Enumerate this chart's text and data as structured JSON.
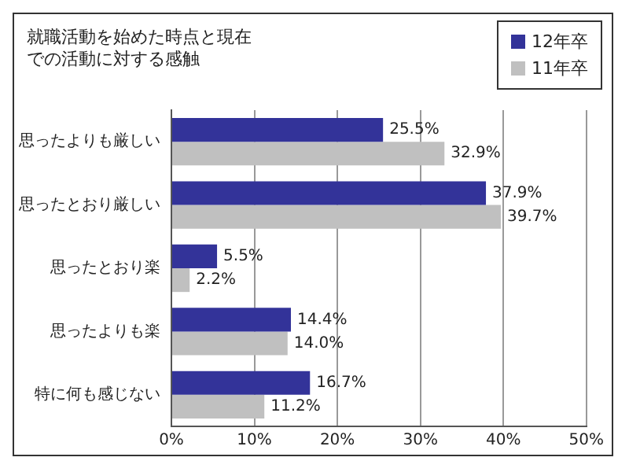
{
  "chart_data": {
    "type": "bar",
    "orientation": "horizontal",
    "title": "就職活動を始めた時点と現在での活動に対する感触",
    "categories": [
      "思ったよりも厳しい",
      "思ったとおり厳しい",
      "思ったとおり楽",
      "思ったよりも楽",
      "特に何も感じない"
    ],
    "series": [
      {
        "name": "12年卒",
        "color": "#333399",
        "values": [
          25.5,
          37.9,
          5.5,
          14.4,
          16.7
        ],
        "value_labels": [
          "25.5%",
          "37.9%",
          "5.5%",
          "14.4%",
          "16.7%"
        ]
      },
      {
        "name": "11年卒",
        "color": "#c0c0c0",
        "values": [
          32.9,
          39.7,
          2.2,
          14.0,
          11.2
        ],
        "value_labels": [
          "32.9%",
          "39.7%",
          "2.2%",
          "14.0%",
          "11.2%"
        ]
      }
    ],
    "xlim": [
      0,
      50
    ],
    "xticks": [
      {
        "value": 0,
        "label": "0%"
      },
      {
        "value": 10,
        "label": "10%"
      },
      {
        "value": 20,
        "label": "20%"
      },
      {
        "value": 30,
        "label": "30%"
      },
      {
        "value": 40,
        "label": "40%"
      },
      {
        "value": 50,
        "label": "50%"
      }
    ],
    "grid": "x",
    "legend": "top right"
  }
}
